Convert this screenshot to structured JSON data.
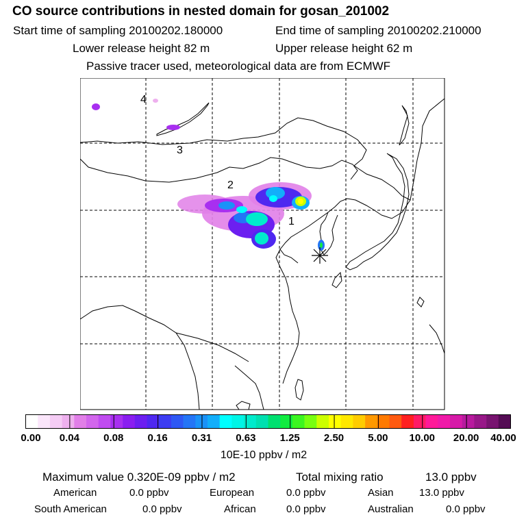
{
  "header": {
    "title": "CO  source contributions in nested domain for gosan_201002",
    "start_label": "Start time of sampling 20100202.180000",
    "end_label": "End time of sampling 20100202.210000",
    "lower_label": "Lower release height   82 m",
    "upper_label": "Upper release height   62 m",
    "tracer_note": "Passive tracer used, meteorological data are from ECMWF"
  },
  "map": {
    "markers": [
      "1",
      "2",
      "3",
      "4"
    ],
    "receptor_symbol": "asterisk"
  },
  "colorbar": {
    "ticks": [
      "0.00",
      "0.04",
      "0.08",
      "0.16",
      "0.31",
      "0.63",
      "1.25",
      "2.50",
      "5.00",
      "10.00",
      "20.00",
      "40.00"
    ],
    "units": "10E-10 ppbv / m2",
    "colors": [
      "#ffffff",
      "#fbe6fb",
      "#f5ccf5",
      "#eeb0ee",
      "#e17fe8",
      "#d266ec",
      "#c04cf0",
      "#a82ff0",
      "#8a1ef0",
      "#6c1ff0",
      "#4f28f0",
      "#3c3cf2",
      "#2e58f4",
      "#2475f6",
      "#1a92f8",
      "#12aefa",
      "#00ffff",
      "#00f5e6",
      "#00ebcc",
      "#00e0b0",
      "#00e070",
      "#10ec40",
      "#3cf520",
      "#78ff10",
      "#ccff00",
      "#ffff00",
      "#ffe800",
      "#ffcc00",
      "#ff9900",
      "#ff7a00",
      "#ff5a10",
      "#ff2020",
      "#ff1a66",
      "#ff1a99",
      "#f01aa8",
      "#d61aa8",
      "#b81a9e",
      "#981888",
      "#781470",
      "#540c54"
    ]
  },
  "stats": {
    "max_label": "Maximum value  0.320E-09 ppbv / m2",
    "total_label": "Total mixing ratio",
    "total_value": "13.0 ppbv",
    "regions": [
      {
        "name": "American",
        "value": "0.0 ppbv"
      },
      {
        "name": "European",
        "value": "0.0 ppbv"
      },
      {
        "name": "Asian",
        "value": "13.0 ppbv"
      },
      {
        "name": "South American",
        "value": "0.0 ppbv"
      },
      {
        "name": "African",
        "value": "0.0 ppbv"
      },
      {
        "name": "Australian",
        "value": "0.0 ppbv"
      }
    ]
  }
}
